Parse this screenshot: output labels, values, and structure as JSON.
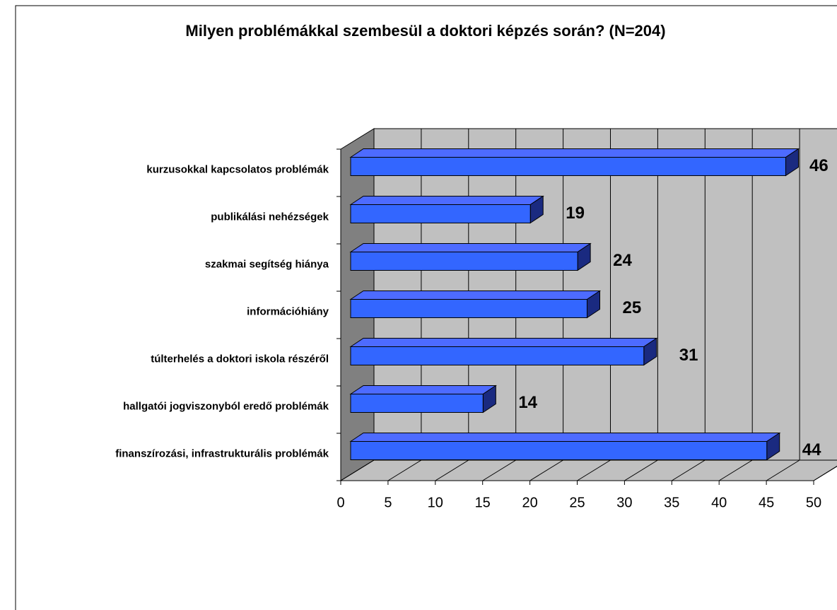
{
  "chart_data": {
    "type": "bar3d",
    "orientation": "horizontal",
    "title": "Milyen problémákkal szembesül a doktori képzés során? (N=204)",
    "categories": [
      "kurzusokkal kapcsolatos problémák",
      "publikálási nehézségek",
      "szakmai segítség hiánya",
      "információhiány",
      "túlterhelés a doktori iskola részéről",
      "hallgatói jogviszonyból eredő problémák",
      "finanszírozási, infrastrukturális problémák"
    ],
    "values": [
      46,
      19,
      24,
      25,
      31,
      14,
      44
    ],
    "color": "#3366ff",
    "xlim": [
      0,
      50
    ],
    "xticks": [
      0,
      5,
      10,
      15,
      20,
      25,
      30,
      35,
      40,
      45,
      50
    ],
    "grid": true
  }
}
